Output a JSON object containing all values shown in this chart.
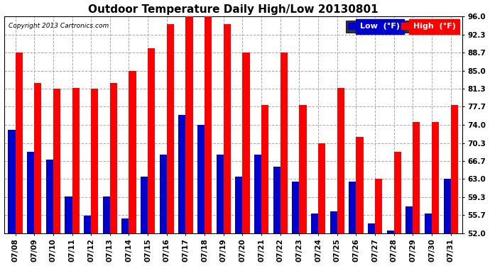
{
  "title": "Outdoor Temperature Daily High/Low 20130801",
  "copyright": "Copyright 2013 Cartronics.com",
  "legend_low": "Low  (°F)",
  "legend_high": "High  (°F)",
  "dates": [
    "07/08",
    "07/09",
    "07/10",
    "07/11",
    "07/12",
    "07/13",
    "07/14",
    "07/15",
    "07/16",
    "07/17",
    "07/18",
    "07/19",
    "07/20",
    "07/21",
    "07/22",
    "07/23",
    "07/24",
    "07/25",
    "07/26",
    "07/27",
    "07/28",
    "07/29",
    "07/30",
    "07/31"
  ],
  "highs": [
    88.7,
    82.5,
    81.3,
    81.5,
    81.3,
    82.5,
    85.0,
    89.5,
    94.5,
    96.0,
    96.0,
    94.5,
    88.7,
    78.0,
    88.7,
    78.0,
    70.3,
    81.5,
    71.5,
    63.0,
    68.5,
    74.5,
    74.5,
    78.0
  ],
  "lows": [
    73.0,
    68.5,
    67.0,
    59.5,
    55.5,
    59.5,
    55.0,
    63.5,
    68.0,
    76.0,
    74.0,
    68.0,
    63.5,
    68.0,
    65.5,
    62.5,
    56.0,
    56.5,
    62.5,
    54.0,
    52.5,
    57.5,
    56.0,
    63.0
  ],
  "ymin": 52.0,
  "ymax": 96.0,
  "yticks": [
    52.0,
    55.7,
    59.3,
    63.0,
    66.7,
    70.3,
    74.0,
    77.7,
    81.3,
    85.0,
    88.7,
    92.3,
    96.0
  ],
  "bar_width": 0.38,
  "high_color": "#ff0000",
  "low_color": "#0000cc",
  "bg_color": "#ffffff",
  "grid_color": "#aaaaaa",
  "title_fontsize": 11,
  "tick_fontsize": 7.5,
  "legend_fontsize": 8
}
